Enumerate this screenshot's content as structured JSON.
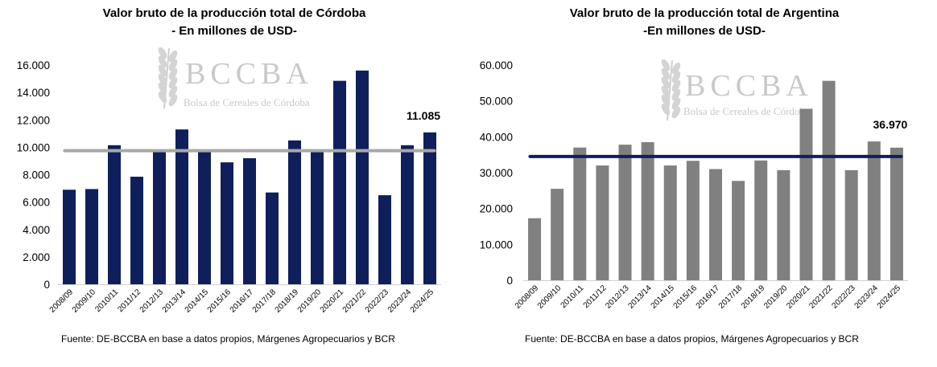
{
  "watermark": {
    "name": "BCCBA",
    "subtitle": "Bolsa de Cereales de Córdoba"
  },
  "charts": [
    {
      "title_line1": "Valor bruto de la producción total de Córdoba",
      "title_line2": "- En millones de USD-",
      "source": "Fuente: DE-BCCBA en base a datos propios, Márgenes Agropecuarios y BCR"
    },
    {
      "title_line1": "Valor bruto de la producción total de Argentina",
      "title_line2": "-En millones de USD-",
      "source": "Fuente: DE-BCCBA en base a datos propios, Márgenes Agropecuarios y BCR"
    }
  ],
  "chart_data": [
    {
      "type": "bar",
      "title": "Valor bruto de la producción total de Córdoba - En millones de USD-",
      "categories": [
        "2008/09",
        "2009/10",
        "2010/11",
        "2011/12",
        "2012/13",
        "2013/14",
        "2014/15",
        "2015/16",
        "2016/17",
        "2017/18",
        "2018/19",
        "2019/20",
        "2020/21",
        "2021/22",
        "2022/23",
        "2023/24",
        "2024/25"
      ],
      "values": [
        6900,
        6950,
        10150,
        7850,
        9800,
        11300,
        9800,
        8900,
        9200,
        6700,
        10500,
        9650,
        14850,
        15600,
        6500,
        10150,
        11085
      ],
      "yticks": [
        "0",
        "2.000",
        "4.000",
        "6.000",
        "8.000",
        "10.000",
        "12.000",
        "14.000",
        "16.000"
      ],
      "ylim": [
        0,
        16000
      ],
      "average_line": 9750,
      "bar_color": "#0f1f5c",
      "line_color": "#a8a8a8",
      "data_label": {
        "index": 16,
        "text": "11.085"
      }
    },
    {
      "type": "bar",
      "title": "Valor bruto de la producción total de Argentina -En millones de USD-",
      "categories": [
        "2008/09",
        "2009/10",
        "2010/11",
        "2011/12",
        "2012/13",
        "2013/14",
        "2014/15",
        "2015/16",
        "2016/17",
        "2017/18",
        "2018/19",
        "2019/20",
        "2020/21",
        "2021/22",
        "2022/23",
        "2023/24",
        "2024/25"
      ],
      "values": [
        17300,
        25500,
        37000,
        32000,
        37800,
        38500,
        32000,
        33300,
        31000,
        27700,
        33400,
        30700,
        47800,
        55600,
        30700,
        38700,
        36970
      ],
      "yticks": [
        "0",
        "10.000",
        "20.000",
        "30.000",
        "40.000",
        "50.000",
        "60.000"
      ],
      "ylim": [
        0,
        60000
      ],
      "average_line": 34500,
      "bar_color": "#808080",
      "line_color": "#0f1f5c",
      "data_label": {
        "index": 16,
        "text": "36.970"
      }
    }
  ]
}
